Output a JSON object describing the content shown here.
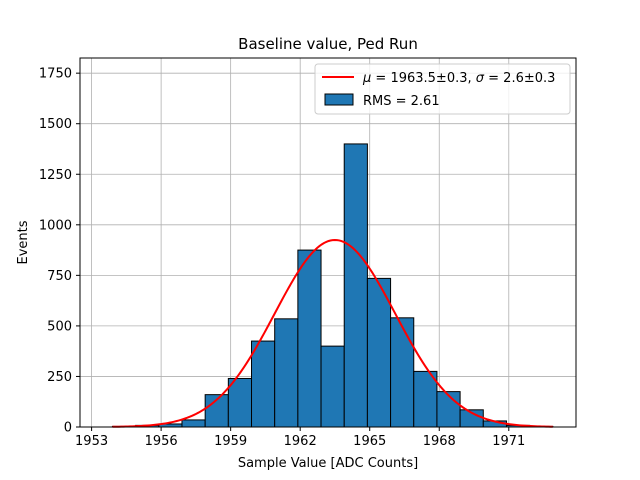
{
  "chart_data": {
    "type": "bar",
    "title": "Baseline value, Ped Run",
    "xlabel": "Sample Value [ADC Counts]",
    "ylabel": "Events",
    "xlim": [
      1952.5,
      1973.9
    ],
    "ylim": [
      0,
      1825
    ],
    "xticks": [
      1953,
      1956,
      1959,
      1962,
      1965,
      1968,
      1971
    ],
    "yticks": [
      0,
      250,
      500,
      750,
      1000,
      1250,
      1500,
      1750
    ],
    "grid": true,
    "legend_position": "top-right",
    "colors": {
      "bars": "#1f77b4",
      "bar_edge": "#000000",
      "fit": "#ff0000",
      "grid": "#b0b0b0"
    },
    "histogram": {
      "bin_edges": [
        1953.9,
        1954.9,
        1955.9,
        1956.9,
        1957.9,
        1958.9,
        1959.9,
        1960.9,
        1961.9,
        1962.9,
        1963.9,
        1964.9,
        1965.9,
        1966.9,
        1967.9,
        1968.9,
        1969.9,
        1970.9,
        1971.9,
        1972.9
      ],
      "counts": [
        3,
        8,
        15,
        35,
        160,
        240,
        425,
        535,
        875,
        400,
        1400,
        735,
        540,
        275,
        175,
        85,
        30,
        8,
        3
      ]
    },
    "fit": {
      "type": "gaussian",
      "mu": 1963.5,
      "sigma": 2.6,
      "amplitude": 925,
      "x_range": [
        1953.9,
        1972.9
      ]
    },
    "legend": [
      {
        "kind": "line",
        "label": "$\\mu = 1963.5 \\pm 0.3$, $\\sigma = 2.6 \\pm 0.3$",
        "parts": {
          "mu_sym": "μ",
          "mu_text": " = 1963.5±0.3, ",
          "sigma_sym": "σ",
          "sigma_text": " = 2.6±0.3"
        }
      },
      {
        "kind": "patch",
        "label": "RMS = 2.61"
      }
    ]
  }
}
